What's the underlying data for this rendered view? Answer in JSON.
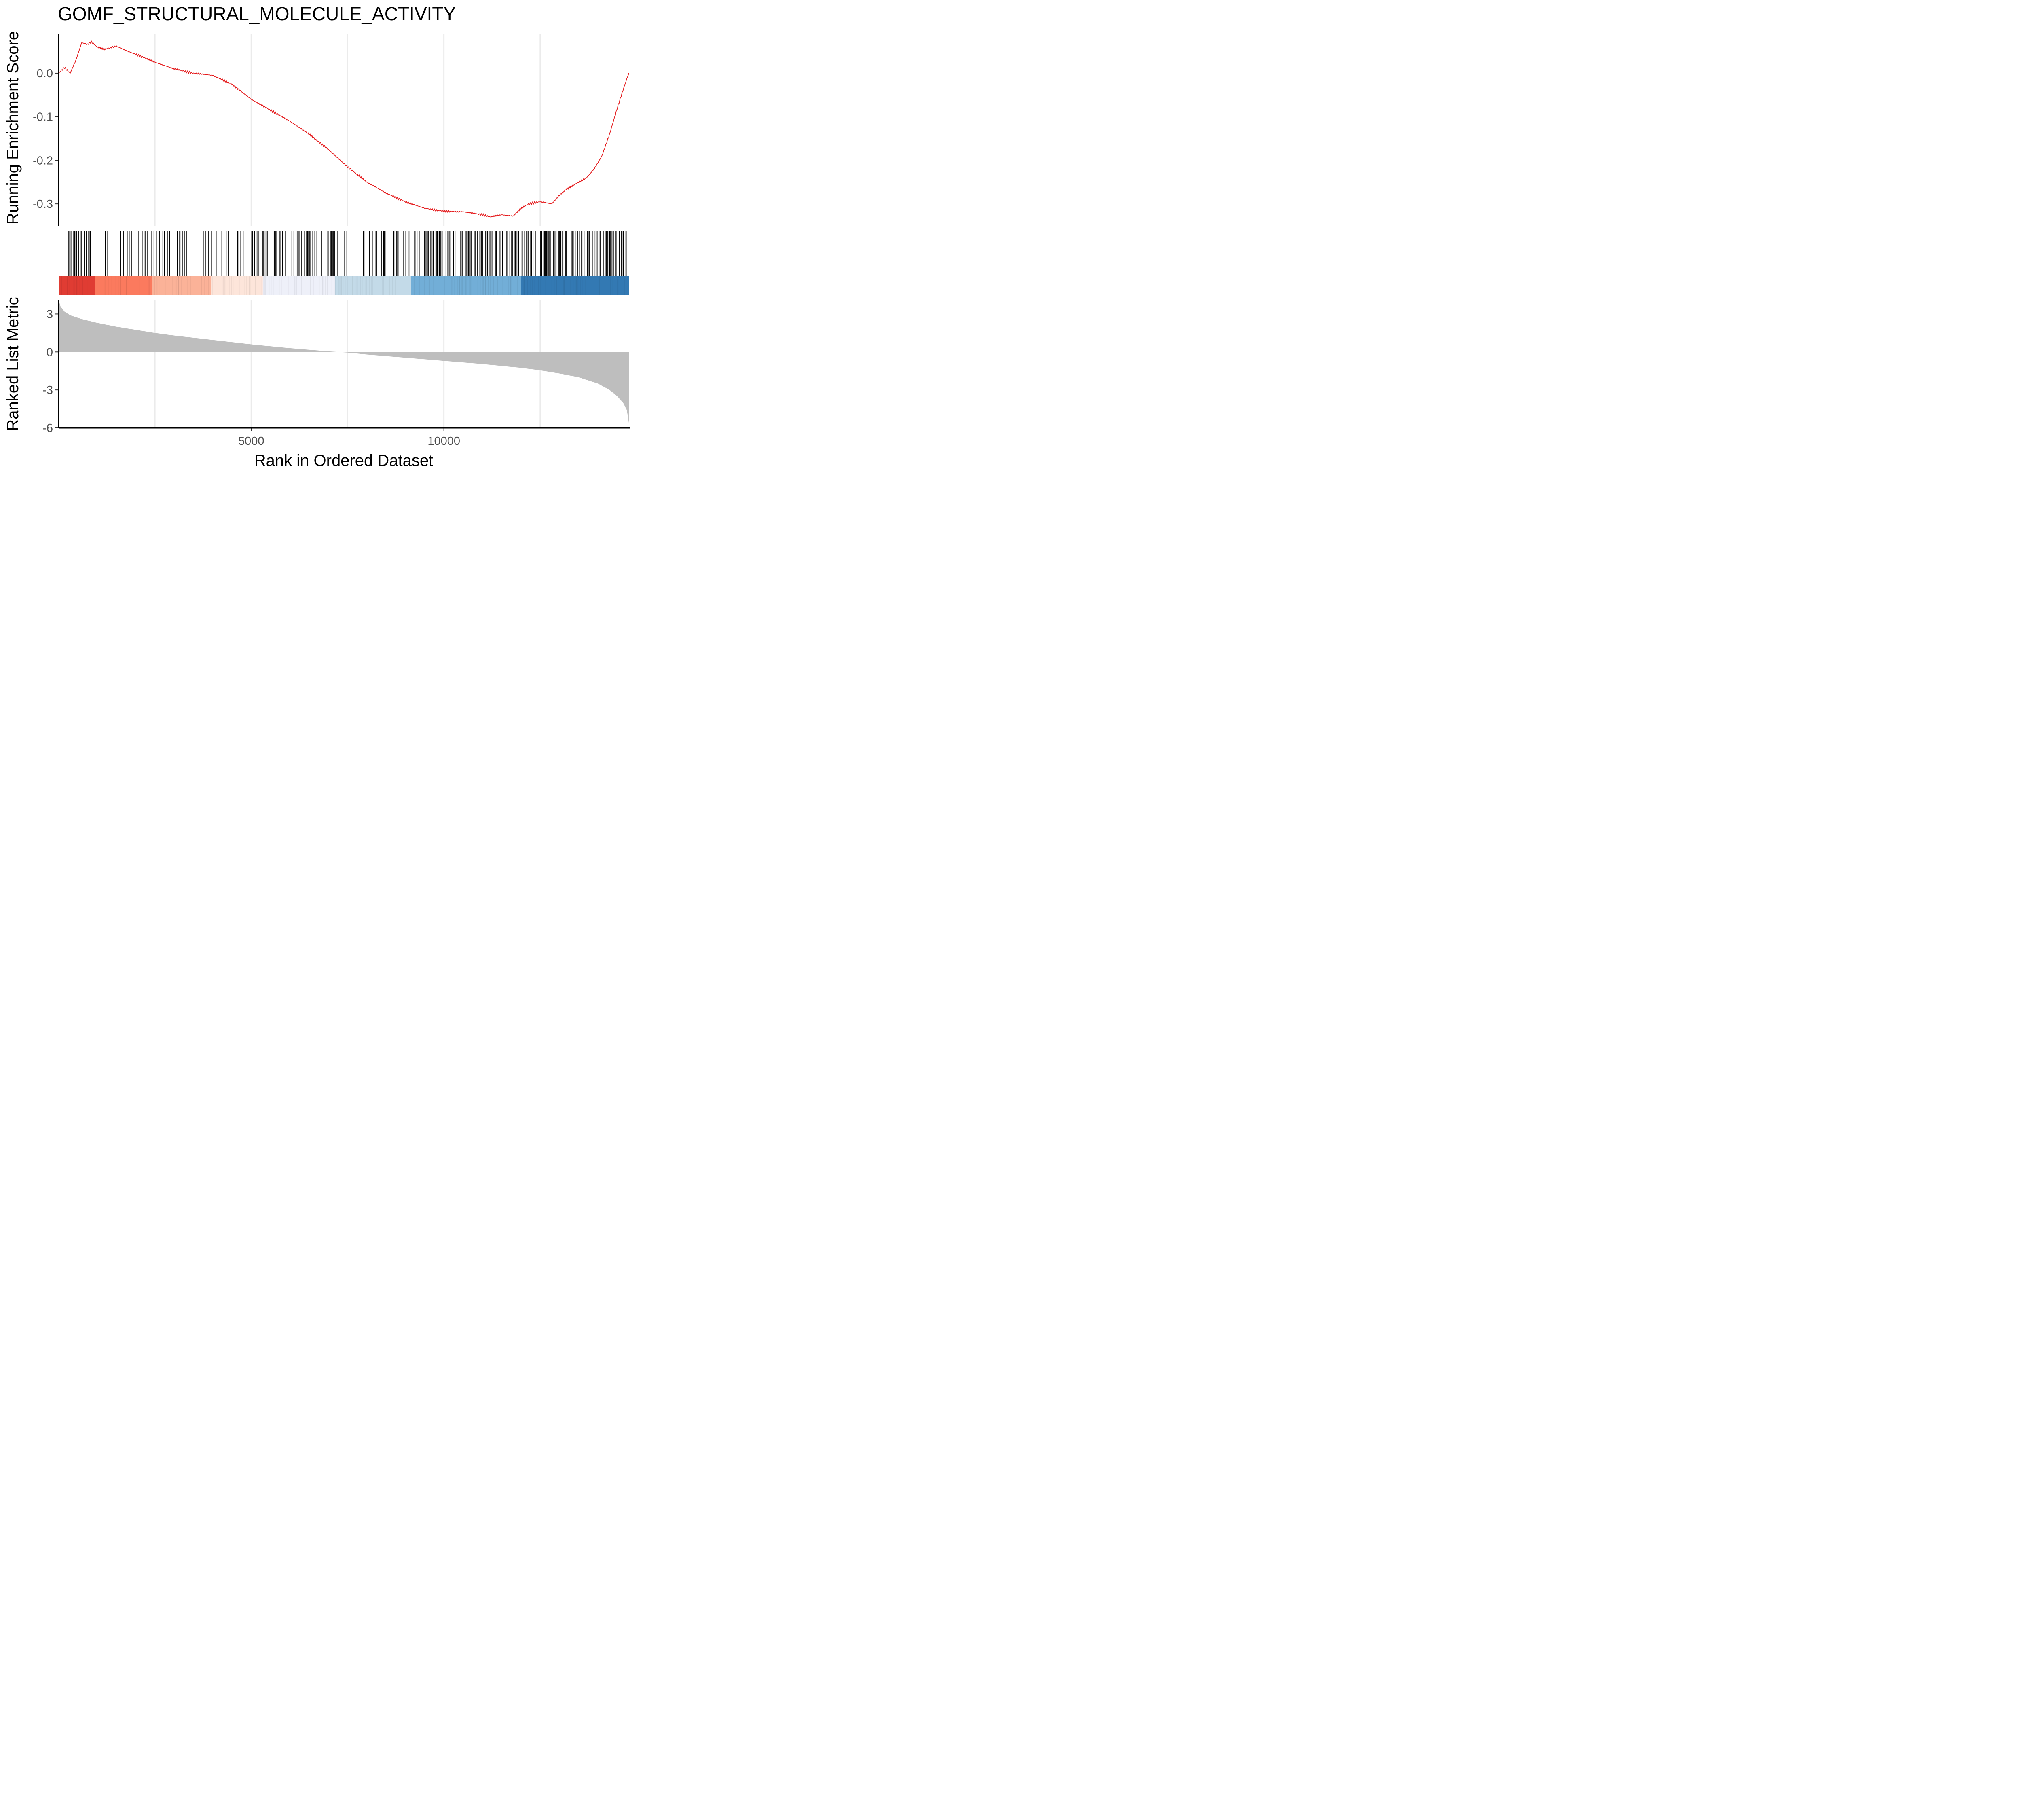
{
  "chart_data": [
    {
      "type": "line",
      "panel": "running-enrichment-score",
      "title": "GOMF_STRUCTURAL_MOLECULE_ACTIVITY",
      "ylabel": "Running Enrichment Score",
      "ylim": [
        -0.35,
        0.09
      ],
      "yticks": [
        0.0,
        -0.1,
        -0.2,
        -0.3
      ],
      "ytick_labels": [
        "0.0",
        "-0.1",
        "-0.2",
        "-0.3"
      ],
      "xlim": [
        1,
        14800
      ],
      "grid": "vertical major lines",
      "line_color": "#e41a1c",
      "series": [
        {
          "x": [
            1,
            150,
            300,
            450,
            600,
            750,
            850,
            1000,
            1200,
            1400,
            1500,
            1800,
            2100,
            2500,
            3000,
            3500,
            4000,
            4500,
            5000,
            5500,
            6000,
            6500,
            7000,
            7500,
            8000,
            8500,
            9000,
            9500,
            10000,
            10500,
            11000,
            11200,
            11500,
            11800,
            12000,
            12200,
            12500,
            12800,
            13000,
            13200,
            13500,
            13700,
            13900,
            14100,
            14300,
            14500,
            14700,
            14800
          ],
          "values": [
            0.0,
            0.013,
            0.0,
            0.03,
            0.07,
            0.066,
            0.072,
            0.06,
            0.055,
            0.06,
            0.062,
            0.05,
            0.04,
            0.025,
            0.01,
            0.0,
            -0.005,
            -0.025,
            -0.06,
            -0.085,
            -0.11,
            -0.14,
            -0.175,
            -0.215,
            -0.25,
            -0.275,
            -0.295,
            -0.31,
            -0.317,
            -0.318,
            -0.325,
            -0.33,
            -0.325,
            -0.328,
            -0.31,
            -0.3,
            -0.295,
            -0.3,
            -0.28,
            -0.265,
            -0.25,
            -0.24,
            -0.22,
            -0.19,
            -0.14,
            -0.08,
            -0.025,
            0.0
          ]
        }
      ]
    },
    {
      "type": "barcode",
      "panel": "gene-hits-and-rank-heatmap",
      "xlim": [
        1,
        14800
      ],
      "hit_bands": [
        {
          "x0": 200,
          "x1": 850,
          "density": 0.7
        },
        {
          "x0": 1100,
          "x1": 2400,
          "density": 0.22
        },
        {
          "x0": 2400,
          "x1": 3800,
          "density": 0.28
        },
        {
          "x0": 3800,
          "x1": 4800,
          "density": 0.25
        },
        {
          "x0": 5000,
          "x1": 5600,
          "density": 0.4
        },
        {
          "x0": 5600,
          "x1": 7600,
          "density": 0.45
        },
        {
          "x0": 7900,
          "x1": 9300,
          "density": 0.45
        },
        {
          "x0": 9300,
          "x1": 11000,
          "density": 0.55
        },
        {
          "x0": 11000,
          "x1": 12300,
          "density": 0.6
        },
        {
          "x0": 12300,
          "x1": 14800,
          "density": 0.75
        }
      ],
      "rank_colors": [
        {
          "x0": 1,
          "x1": 950,
          "color": "#e03c33"
        },
        {
          "x0": 950,
          "x1": 2420,
          "color": "#fb7a5e"
        },
        {
          "x0": 2420,
          "x1": 3960,
          "color": "#fbb298"
        },
        {
          "x0": 3960,
          "x1": 5300,
          "color": "#fde5da"
        },
        {
          "x0": 5300,
          "x1": 7170,
          "color": "#eef0f9"
        },
        {
          "x0": 7170,
          "x1": 9150,
          "color": "#c3dae8"
        },
        {
          "x0": 9150,
          "x1": 12000,
          "color": "#72aed7"
        },
        {
          "x0": 12000,
          "x1": 14800,
          "color": "#3379b3"
        }
      ]
    },
    {
      "type": "area",
      "panel": "ranked-list-metric",
      "xlabel": "Rank in Ordered Dataset",
      "ylabel": "Ranked List Metric",
      "ylim": [
        -6,
        4.1
      ],
      "yticks": [
        3,
        0,
        -3,
        -6
      ],
      "ytick_labels": [
        "3",
        "0",
        "-3",
        "-6"
      ],
      "xlim": [
        1,
        14800
      ],
      "xticks": [
        5000,
        10000
      ],
      "xtick_labels": [
        "5000",
        "10000"
      ],
      "fill_color": "#bebebe",
      "series": [
        {
          "x": [
            1,
            50,
            150,
            300,
            600,
            1000,
            1500,
            2000,
            2500,
            3000,
            4000,
            5000,
            6000,
            7000,
            7500,
            8000,
            9000,
            10000,
            11000,
            12000,
            12500,
            13000,
            13500,
            14000,
            14300,
            14500,
            14650,
            14750,
            14800
          ],
          "values": [
            4.1,
            3.6,
            3.2,
            2.9,
            2.6,
            2.3,
            2.0,
            1.75,
            1.5,
            1.3,
            0.95,
            0.6,
            0.3,
            0.05,
            -0.05,
            -0.2,
            -0.45,
            -0.7,
            -0.95,
            -1.25,
            -1.45,
            -1.7,
            -2.0,
            -2.5,
            -3.0,
            -3.5,
            -4.0,
            -4.6,
            -5.6
          ]
        }
      ]
    }
  ]
}
